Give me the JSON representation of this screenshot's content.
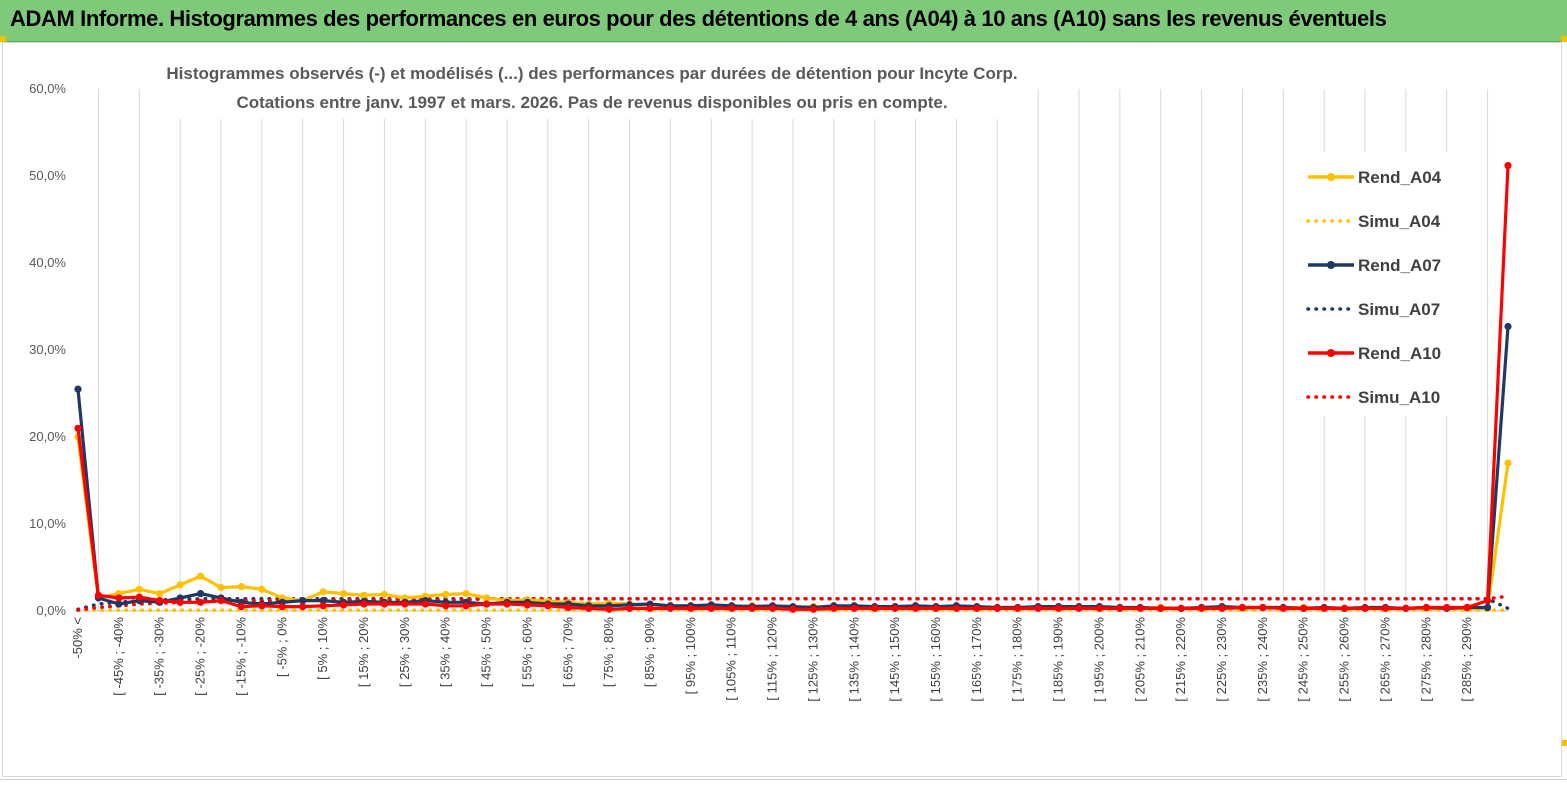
{
  "banner": {
    "title": "ADAM Informe. Histogrammes des performances en euros pour des détentions de 4 ans (A04) à 10 ans (A10) sans les revenus éventuels"
  },
  "chart_data": {
    "type": "line",
    "title_line1": "Histogrammes observés (-) et modélisés (...) des performances par durées de détention pour Incyte  Corp.",
    "title_line2": "Cotations entre janv. 1997 et mars. 2026.  Pas de revenus disponibles ou pris en compte.",
    "ylim": [
      0,
      60
    ],
    "yticks": [
      "0,0%",
      "10,0%",
      "20,0%",
      "30,0%",
      "40,0%",
      "50,0%",
      "60,0%"
    ],
    "grid": "vertical",
    "legend_position": "right",
    "x_labeled_categories": [
      "-50% <",
      "[ -45% ; -40%",
      "[ -35% ; -30%",
      "[ -25% ; -20%",
      "[ -15% ; -10%",
      "[ -5% ; 0%",
      "[ 5% ; 10%",
      "[ 15% ; 20%",
      "[ 25% ; 30%",
      "[ 35% ; 40%",
      "[ 45% ; 50%",
      "[ 55% ; 60%",
      "[ 65% ; 70%",
      "[ 75% ; 80%",
      "[ 85% ; 90%",
      "[ 95% ; 100%",
      "[ 105% ; 110%",
      "[ 115% ; 120%",
      "[ 125% ; 130%",
      "[ 135% ; 140%",
      "[ 145% ; 150%",
      "[ 155% ; 160%",
      "[ 165% ; 170%",
      "[ 175% ; 180%",
      "[ 185% ; 190%",
      "[ 195% ; 200%",
      "[ 205% ; 210%",
      "[ 215% ; 220%",
      "[ 225% ; 230%",
      "[ 235% ; 240%",
      "[ 245% ; 250%",
      "[ 255% ; 260%",
      "[ 265% ; 270%",
      "[ 275% ; 280%",
      "[ 285% ; 290%"
    ],
    "series": [
      {
        "name": "Rend_A04",
        "color": "#ffc000",
        "style": "solid",
        "values": [
          20.0,
          1.5,
          2.0,
          2.5,
          2.0,
          3.0,
          4.0,
          2.7,
          2.8,
          2.5,
          1.5,
          1.2,
          2.2,
          2.0,
          1.8,
          1.9,
          1.5,
          1.7,
          1.9,
          2.0,
          1.5,
          1.2,
          1.3,
          1.1,
          1.0,
          0.8,
          0.9,
          0.8,
          0.7,
          0.6,
          0.6,
          0.5,
          0.5,
          0.6,
          0.5,
          0.4,
          0.5,
          0.4,
          0.5,
          0.4,
          0.4,
          0.4,
          0.4,
          0.5,
          0.4,
          0.4,
          0.4,
          0.4,
          0.4,
          0.4,
          0.4,
          0.3,
          0.3,
          0.4,
          0.3,
          0.3,
          0.3,
          0.3,
          0.4,
          0.4,
          0.4,
          0.3,
          0.3,
          0.3,
          0.3,
          0.3,
          0.3,
          0.3,
          0.3,
          0.3,
          17.0
        ]
      },
      {
        "name": "Simu_A04",
        "color": "#ffc000",
        "style": "dotted",
        "values": [
          0.1,
          0.1,
          0.1,
          0.1,
          0.1,
          0.1,
          0.1,
          0.1,
          0.1,
          0.1,
          0.1,
          0.1,
          0.1,
          0.1,
          0.1,
          0.1,
          0.1,
          0.1,
          0.1,
          0.1,
          0.1,
          0.1,
          0.1,
          0.1,
          0.1,
          0.1,
          0.1,
          0.1,
          0.1,
          0.1,
          0.1,
          0.1,
          0.1,
          0.1,
          0.1,
          0.1,
          0.1,
          0.1,
          0.1,
          0.1,
          0.1,
          0.1,
          0.1,
          0.1,
          0.1,
          0.1,
          0.1,
          0.1,
          0.1,
          0.1,
          0.1,
          0.1,
          0.1,
          0.1,
          0.1,
          0.1,
          0.1,
          0.1,
          0.1,
          0.1,
          0.1,
          0.1,
          0.1,
          0.1,
          0.1,
          0.1,
          0.1,
          0.1,
          0.1,
          0.1,
          0.1
        ]
      },
      {
        "name": "Rend_A07",
        "color": "#1f3864",
        "style": "solid",
        "values": [
          25.5,
          1.5,
          0.8,
          1.2,
          1.0,
          1.5,
          2.0,
          1.5,
          1.0,
          0.8,
          1.0,
          1.2,
          1.2,
          1.0,
          1.1,
          1.0,
          1.0,
          1.2,
          1.0,
          1.0,
          0.8,
          1.0,
          1.0,
          0.8,
          0.8,
          0.6,
          0.6,
          0.7,
          0.8,
          0.6,
          0.6,
          0.7,
          0.6,
          0.5,
          0.6,
          0.5,
          0.4,
          0.6,
          0.6,
          0.5,
          0.5,
          0.6,
          0.5,
          0.6,
          0.5,
          0.4,
          0.4,
          0.5,
          0.5,
          0.5,
          0.5,
          0.4,
          0.4,
          0.3,
          0.3,
          0.4,
          0.5,
          0.4,
          0.4,
          0.4,
          0.3,
          0.4,
          0.3,
          0.4,
          0.4,
          0.3,
          0.4,
          0.3,
          0.4,
          0.4,
          32.7
        ]
      },
      {
        "name": "Simu_A07",
        "color": "#1f3864",
        "style": "dotted",
        "values": [
          0.2,
          0.8,
          1.0,
          1.2,
          1.3,
          1.3,
          1.4,
          1.4,
          1.4,
          1.4,
          1.4,
          1.4,
          1.4,
          1.4,
          1.4,
          1.4,
          1.4,
          1.4,
          1.4,
          1.4,
          1.4,
          1.4,
          1.4,
          1.4,
          1.4,
          1.4,
          1.4,
          1.4,
          1.4,
          1.4,
          1.4,
          1.4,
          1.4,
          1.4,
          1.4,
          1.4,
          1.4,
          1.4,
          1.4,
          1.4,
          1.4,
          1.4,
          1.4,
          1.4,
          1.4,
          1.4,
          1.4,
          1.4,
          1.4,
          1.4,
          1.4,
          1.4,
          1.4,
          1.4,
          1.4,
          1.4,
          1.4,
          1.4,
          1.4,
          1.4,
          1.4,
          1.4,
          1.4,
          1.4,
          1.4,
          1.4,
          1.4,
          1.4,
          1.4,
          1.4,
          0.3
        ]
      },
      {
        "name": "Rend_A10",
        "color": "#ff0000",
        "style": "solid",
        "values": [
          21.0,
          1.8,
          1.5,
          1.6,
          1.2,
          1.0,
          1.0,
          1.2,
          0.5,
          0.6,
          0.5,
          0.5,
          0.6,
          0.7,
          0.8,
          0.8,
          0.8,
          0.8,
          0.6,
          0.6,
          0.8,
          0.8,
          0.7,
          0.6,
          0.4,
          0.3,
          0.2,
          0.3,
          0.3,
          0.3,
          0.3,
          0.3,
          0.3,
          0.3,
          0.3,
          0.2,
          0.2,
          0.3,
          0.3,
          0.3,
          0.3,
          0.3,
          0.3,
          0.3,
          0.3,
          0.3,
          0.3,
          0.3,
          0.3,
          0.3,
          0.3,
          0.3,
          0.3,
          0.3,
          0.3,
          0.3,
          0.3,
          0.4,
          0.4,
          0.3,
          0.3,
          0.3,
          0.3,
          0.3,
          0.3,
          0.3,
          0.4,
          0.4,
          0.4,
          1.2,
          51.2
        ]
      },
      {
        "name": "Simu_A10",
        "color": "#ff0000",
        "style": "dotted",
        "values": [
          0.1,
          0.4,
          0.6,
          0.8,
          0.9,
          1.0,
          1.1,
          1.1,
          1.2,
          1.2,
          1.2,
          1.3,
          1.3,
          1.3,
          1.3,
          1.3,
          1.3,
          1.3,
          1.3,
          1.3,
          1.4,
          1.4,
          1.4,
          1.4,
          1.4,
          1.4,
          1.4,
          1.4,
          1.4,
          1.4,
          1.4,
          1.4,
          1.4,
          1.4,
          1.4,
          1.4,
          1.4,
          1.4,
          1.4,
          1.4,
          1.4,
          1.4,
          1.4,
          1.4,
          1.4,
          1.4,
          1.4,
          1.4,
          1.4,
          1.4,
          1.4,
          1.4,
          1.4,
          1.4,
          1.4,
          1.4,
          1.4,
          1.4,
          1.4,
          1.4,
          1.4,
          1.4,
          1.4,
          1.4,
          1.4,
          1.4,
          1.4,
          1.4,
          1.4,
          1.4,
          1.7
        ]
      }
    ]
  }
}
